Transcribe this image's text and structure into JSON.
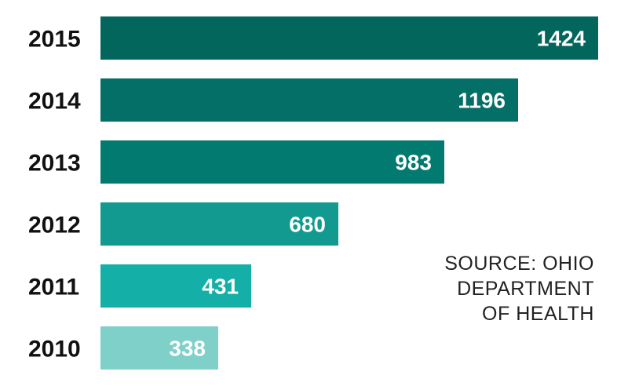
{
  "chart_data": {
    "type": "bar",
    "orientation": "horizontal",
    "categories": [
      "2015",
      "2014",
      "2013",
      "2012",
      "2011",
      "2010"
    ],
    "values": [
      1424,
      1196,
      983,
      680,
      431,
      338
    ],
    "bar_colors": [
      "#03665c",
      "#036f66",
      "#037a70",
      "#129a91",
      "#14afa6",
      "#7ed0c8"
    ],
    "value_labels_inside_bars": true,
    "title": "",
    "xlabel": "",
    "ylabel": "",
    "grid": false,
    "legend": "none"
  },
  "source": {
    "lines": [
      "SOURCE: OHIO",
      "DEPARTMENT",
      "OF HEALTH"
    ]
  }
}
